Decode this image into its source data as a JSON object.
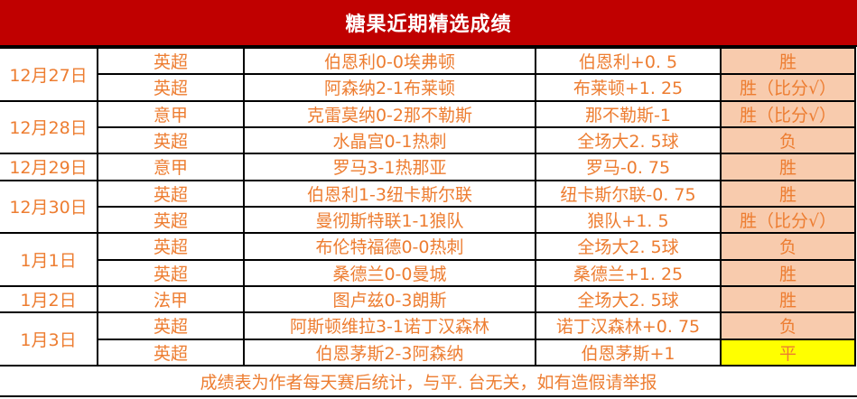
{
  "title": "糖果近期精选成绩",
  "footer": {
    "note": "成绩表为作者每天赛后统计，与平. 台无关，如有造假请举报"
  },
  "colors": {
    "header_bg": "#C00000",
    "orange_text": "#ED7D31",
    "result_bg": "#F8CBAD",
    "draw_bg": "#FFFF00",
    "win_text": "#FF0000",
    "loss_text": "#404040",
    "border": "#000000"
  },
  "table": {
    "columns": [
      "date",
      "league",
      "match",
      "bet",
      "result"
    ],
    "groups": [
      {
        "date": "12月27日",
        "rows": [
          {
            "league": "英超",
            "match": "伯恩利0-0埃弗顿",
            "bet": "伯恩利+0. 5",
            "result": "胜",
            "result_type": "win"
          },
          {
            "league": "英超",
            "match": "阿森纳2-1布莱顿",
            "bet": "布莱顿+1. 25",
            "result": "胜（比分√）",
            "result_type": "win"
          }
        ]
      },
      {
        "date": "12月28日",
        "rows": [
          {
            "league": "意甲",
            "match": "克雷莫纳0-2那不勒斯",
            "bet": "那不勒斯-1",
            "result": "胜（比分√）",
            "result_type": "win"
          },
          {
            "league": "英超",
            "match": "水晶宫0-1热刺",
            "bet": "全场大2. 5球",
            "result": "负",
            "result_type": "loss"
          }
        ]
      },
      {
        "date": "12月29日",
        "rows": [
          {
            "league": "意甲",
            "match": "罗马3-1热那亚",
            "bet": "罗马-0. 75",
            "result": "胜",
            "result_type": "win"
          }
        ]
      },
      {
        "date": "12月30日",
        "rows": [
          {
            "league": "英超",
            "match": "伯恩利1-3纽卡斯尔联",
            "bet": "纽卡斯尔联-0. 75",
            "result": "胜",
            "result_type": "win"
          },
          {
            "league": "英超",
            "match": "曼彻斯特联1-1狼队",
            "bet": "狼队+1. 5",
            "result": "胜（比分√）",
            "result_type": "win"
          }
        ]
      },
      {
        "date": "1月1日",
        "rows": [
          {
            "league": "英超",
            "match": "布伦特福德0-0热刺",
            "bet": "全场大2. 5球",
            "result": "负",
            "result_type": "loss"
          },
          {
            "league": "英超",
            "match": "桑德兰0-0曼城",
            "bet": "桑德兰+1. 25",
            "result": "胜",
            "result_type": "win"
          }
        ]
      },
      {
        "date": "1月2日",
        "rows": [
          {
            "league": "法甲",
            "match": "图卢兹0-3朗斯",
            "bet": "全场大2. 5球",
            "result": "胜",
            "result_type": "win"
          }
        ]
      },
      {
        "date": "1月3日",
        "rows": [
          {
            "league": "英超",
            "match": "阿斯顿维拉3-1诺丁汉森林",
            "bet": "诺丁汉森林+0. 75",
            "result": "负",
            "result_type": "loss"
          },
          {
            "league": "英超",
            "match": "伯恩茅斯2-3阿森纳",
            "bet": "伯恩茅斯+1",
            "result": "平",
            "result_type": "draw"
          }
        ]
      }
    ]
  }
}
